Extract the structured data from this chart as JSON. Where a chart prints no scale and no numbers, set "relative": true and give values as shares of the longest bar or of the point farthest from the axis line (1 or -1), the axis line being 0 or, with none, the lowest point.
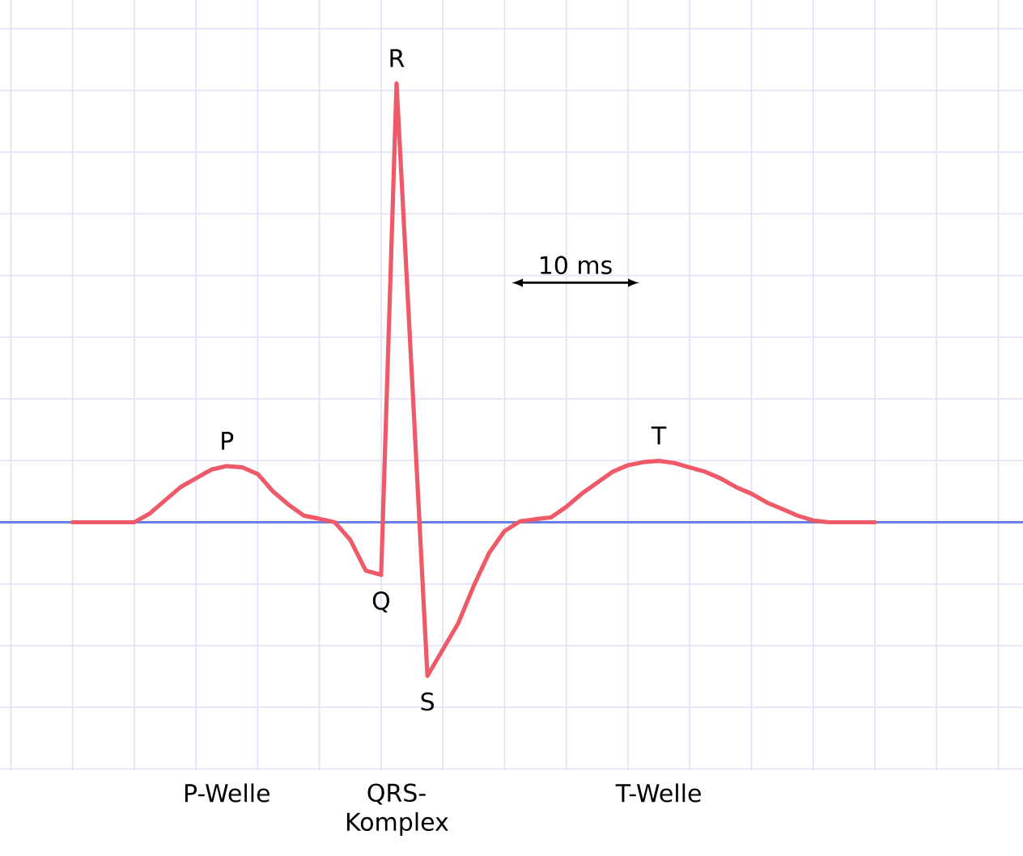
{
  "chart_data": {
    "type": "line",
    "relative": true,
    "categories": [
      null,
      null,
      null,
      null,
      null,
      null,
      null,
      null,
      null,
      null,
      null,
      null,
      null,
      null,
      null,
      null,
      null,
      null,
      null,
      null,
      null,
      null,
      null,
      null,
      null,
      null,
      null,
      null,
      null,
      null,
      null,
      null,
      null,
      null,
      null,
      null,
      null,
      null,
      null,
      null,
      null,
      null,
      null,
      null,
      null,
      null,
      null,
      null,
      null,
      null,
      null,
      null,
      null
    ],
    "series": [
      {
        "color": "#ee5a68",
        "values": [
          0,
          0,
          0,
          0,
          0,
          0.02,
          0.05,
          0.08,
          0.1,
          0.12,
          0.128,
          0.125,
          0.11,
          0.07,
          0.04,
          0.015,
          0.008,
          0,
          -0.04,
          -0.11,
          -0.12,
          1.0,
          0.33,
          -0.35,
          -0.29,
          -0.23,
          -0.145,
          -0.07,
          -0.02,
          0.002,
          0.007,
          0.011,
          0.035,
          0.065,
          0.09,
          0.115,
          0.13,
          0.137,
          0.14,
          0.135,
          0.125,
          0.115,
          0.1,
          0.08,
          0.065,
          0.045,
          0.03,
          0.015,
          0.004,
          0,
          0,
          0,
          0
        ]
      }
    ],
    "ref_lines": [
      {
        "axis": "y",
        "value": 0,
        "color": "#6a7ee8"
      }
    ],
    "grid": true,
    "marker": "none",
    "line_style": "solid",
    "annotations": [
      "P",
      "Q",
      "R",
      "S",
      "T",
      "P-Welle",
      "QRS-Komplex",
      "T-Welle",
      "10 ms"
    ]
  }
}
